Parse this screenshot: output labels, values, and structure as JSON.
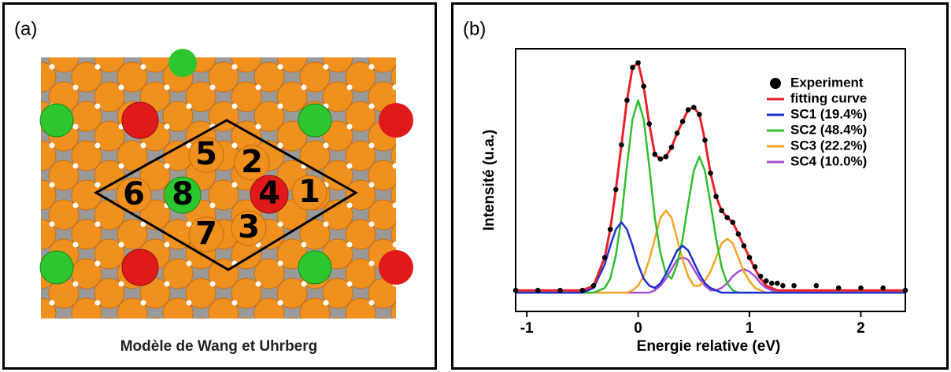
{
  "panel_a": {
    "label": "(a)",
    "site_labels": [
      "1",
      "2",
      "3",
      "4",
      "5",
      "6",
      "7",
      "8"
    ],
    "caption": "Modèle de Wang et Uhrberg"
  },
  "chart_data": {
    "type": "line",
    "panel_label": "(b)",
    "x_label": "Energie relative (eV)",
    "y_label": "Intensité (u.a.)",
    "x": [
      -1.1,
      -0.9,
      -0.7,
      -0.5,
      -0.4,
      -0.3,
      -0.25,
      -0.2,
      -0.15,
      -0.1,
      -0.05,
      0,
      0.05,
      0.1,
      0.15,
      0.2,
      0.25,
      0.3,
      0.35,
      0.4,
      0.45,
      0.5,
      0.55,
      0.6,
      0.65,
      0.7,
      0.75,
      0.8,
      0.85,
      0.9,
      0.95,
      1.0,
      1.05,
      1.1,
      1.15,
      1.2,
      1.25,
      1.3,
      1.4,
      1.6,
      1.8,
      2.0,
      2.2,
      2.4
    ],
    "series": [
      {
        "name": "Experiment",
        "color": "#000000",
        "marker": "dot",
        "values": [
          0.02,
          0.02,
          0.02,
          0.02,
          0.04,
          0.16,
          0.28,
          0.45,
          0.64,
          0.83,
          0.97,
          0.99,
          0.89,
          0.73,
          0.6,
          0.58,
          0.59,
          0.63,
          0.69,
          0.74,
          0.79,
          0.8,
          0.77,
          0.66,
          0.52,
          0.42,
          0.36,
          0.33,
          0.31,
          0.26,
          0.21,
          0.16,
          0.12,
          0.08,
          0.06,
          0.05,
          0.05,
          0.04,
          0.04,
          0.04,
          0.03,
          0.03,
          0.03,
          0.02
        ]
      },
      {
        "name": "fitting curve",
        "color": "#e8202a",
        "values": [
          0.02,
          0.02,
          0.02,
          0.02,
          0.04,
          0.16,
          0.28,
          0.45,
          0.64,
          0.83,
          0.97,
          0.99,
          0.89,
          0.73,
          0.6,
          0.58,
          0.59,
          0.63,
          0.69,
          0.74,
          0.79,
          0.8,
          0.77,
          0.66,
          0.52,
          0.42,
          0.36,
          0.33,
          0.31,
          0.26,
          0.21,
          0.16,
          0.11,
          0.07,
          0.04,
          0.03,
          0.02,
          0.02,
          0.02,
          0.02,
          0.02,
          0.02,
          0.02,
          0.02
        ]
      },
      {
        "name": "SC1 (19.4%)",
        "color": "#1f2fd0",
        "values": [
          0.01,
          0.01,
          0.01,
          0.01,
          0.03,
          0.13,
          0.21,
          0.28,
          0.31,
          0.28,
          0.21,
          0.13,
          0.07,
          0.04,
          0.03,
          0.05,
          0.09,
          0.14,
          0.19,
          0.21,
          0.19,
          0.14,
          0.09,
          0.05,
          0.03,
          0.02,
          0.01,
          0.01,
          0.01,
          0.01,
          0.01,
          0.01,
          0.01,
          0.01,
          0.01,
          0.01,
          0.01,
          0.01,
          0.01,
          0.01,
          0.01,
          0.01,
          0.01,
          0.01
        ]
      },
      {
        "name": "SC2 (48.4%)",
        "color": "#2ec02e",
        "values": [
          0.01,
          0.01,
          0.01,
          0.01,
          0.01,
          0.03,
          0.07,
          0.17,
          0.33,
          0.55,
          0.75,
          0.83,
          0.75,
          0.55,
          0.33,
          0.18,
          0.09,
          0.07,
          0.13,
          0.24,
          0.39,
          0.53,
          0.59,
          0.53,
          0.39,
          0.24,
          0.12,
          0.05,
          0.02,
          0.01,
          0.01,
          0.01,
          0.01,
          0.01,
          0.01,
          0.01,
          0.01,
          0.01,
          0.01,
          0.01,
          0.01,
          0.01,
          0.01,
          0.01
        ]
      },
      {
        "name": "SC3 (22.2%)",
        "color": "#f5a623",
        "values": [
          0.01,
          0.01,
          0.01,
          0.01,
          0.01,
          0.01,
          0.01,
          0.01,
          0.01,
          0.01,
          0.02,
          0.04,
          0.08,
          0.15,
          0.24,
          0.33,
          0.36,
          0.33,
          0.24,
          0.15,
          0.08,
          0.04,
          0.04,
          0.06,
          0.1,
          0.16,
          0.22,
          0.24,
          0.22,
          0.16,
          0.1,
          0.06,
          0.03,
          0.02,
          0.01,
          0.01,
          0.01,
          0.01,
          0.01,
          0.01,
          0.01,
          0.01,
          0.01,
          0.01
        ]
      },
      {
        "name": "SC4 (10.0%)",
        "color": "#a64fd6",
        "values": [
          0.01,
          0.01,
          0.01,
          0.01,
          0.01,
          0.01,
          0.01,
          0.01,
          0.01,
          0.01,
          0.01,
          0.01,
          0.01,
          0.01,
          0.02,
          0.04,
          0.07,
          0.11,
          0.15,
          0.16,
          0.15,
          0.11,
          0.07,
          0.04,
          0.02,
          0.02,
          0.03,
          0.05,
          0.08,
          0.1,
          0.11,
          0.1,
          0.08,
          0.05,
          0.03,
          0.02,
          0.01,
          0.01,
          0.01,
          0.01,
          0.01,
          0.01,
          0.01,
          0.01
        ]
      }
    ],
    "xlim": [
      -1.1,
      2.4
    ],
    "ylim": [
      -0.07,
      1.05
    ],
    "xticks": [
      -1,
      0,
      1,
      2
    ],
    "legend": "upper right"
  }
}
